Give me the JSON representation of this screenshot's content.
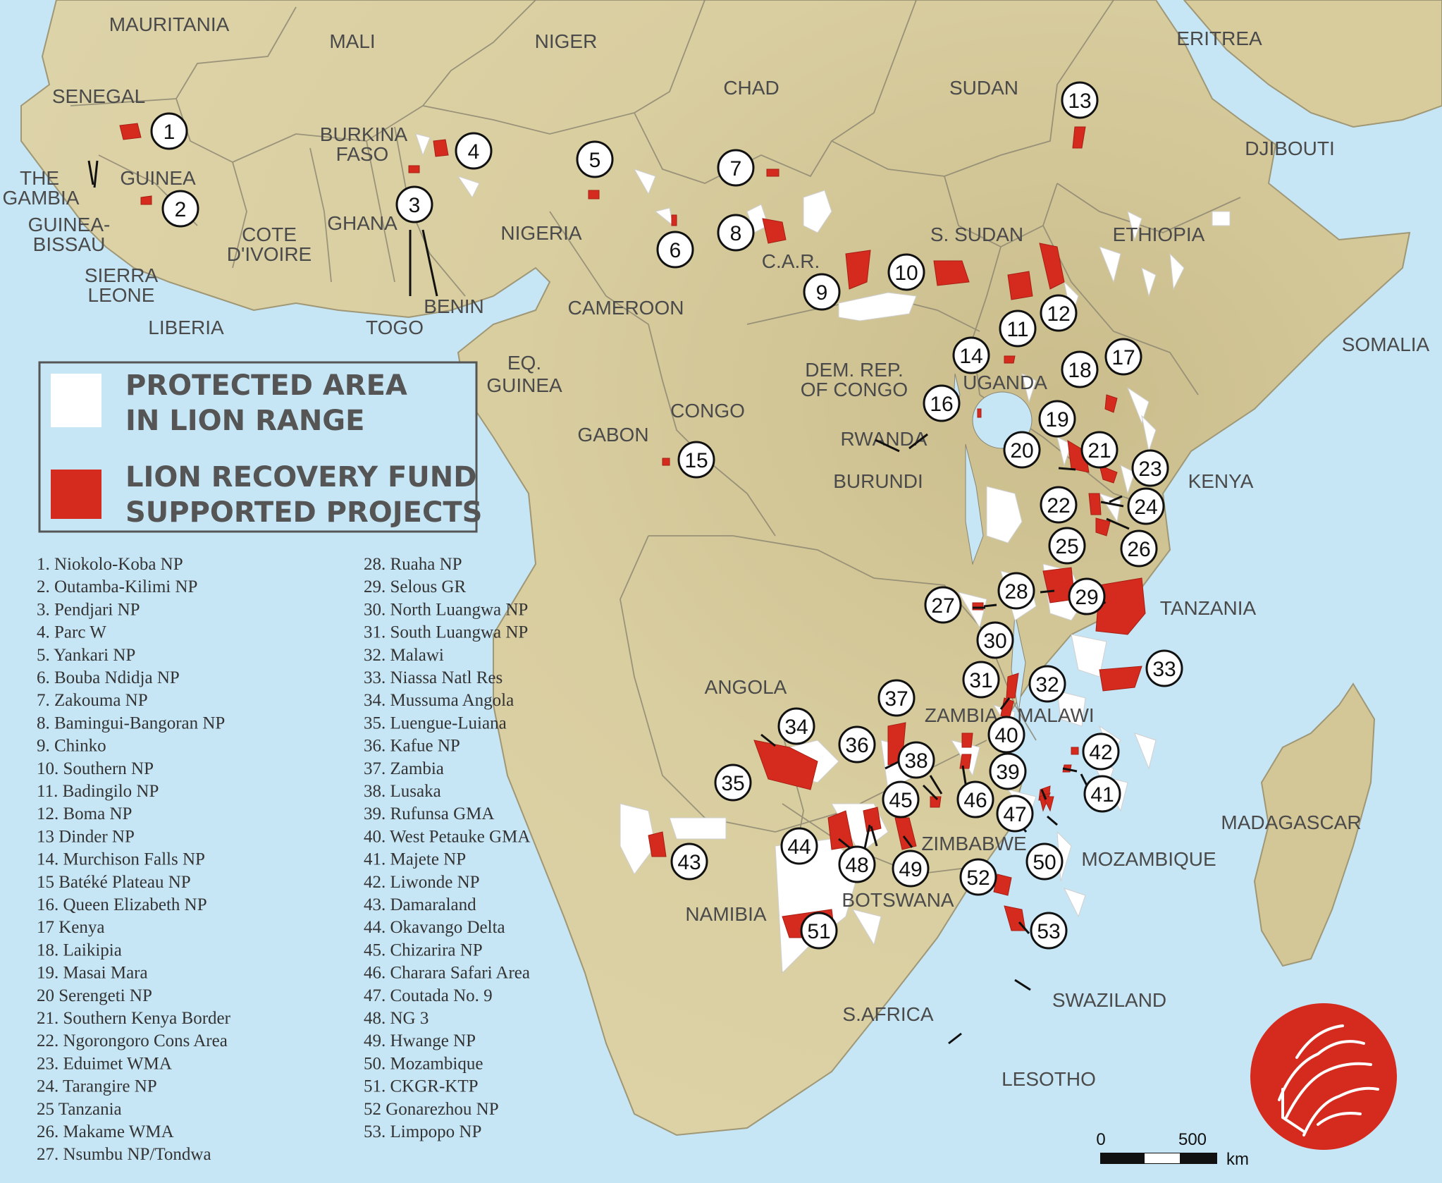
{
  "legend": {
    "protected_line1": "PROTECTED AREA",
    "protected_line2": "IN LION RANGE",
    "fund_line1": "LION RECOVERY FUND",
    "fund_line2": "SUPPORTED PROJECTS"
  },
  "colors": {
    "ocean": "#c7e6f5",
    "land": "#d8cc9c",
    "protected": "#ffffff",
    "project": "#d52b1e"
  },
  "projects": [
    "1. Niokolo-Koba NP",
    "2. Outamba-Kilimi NP",
    "3. Pendjari NP",
    "4. Parc W",
    "5. Yankari NP",
    "6. Bouba Ndidja NP",
    "7. Zakouma NP",
    "8. Bamingui-Bangoran NP",
    "9. Chinko",
    "10. Southern NP",
    "11. Badingilo NP",
    "12. Boma NP",
    "13 Dinder NP",
    "14. Murchison Falls NP",
    "15 Batéké Plateau NP",
    "16. Queen Elizabeth NP",
    "17 Kenya",
    "18. Laikipia",
    "19. Masai Mara",
    "20 Serengeti NP",
    "21. Southern Kenya Border",
    "22. Ngorongoro Cons Area",
    "23. Eduimet WMA",
    "24. Tarangire NP",
    "25 Tanzania",
    "26. Makame WMA",
    "27. Nsumbu NP/Tondwa",
    "28. Ruaha NP",
    "29. Selous GR",
    "30. North Luangwa NP",
    "31. South Luangwa NP",
    "32. Malawi",
    "33. Niassa Natl Res",
    "34. Mussuma Angola",
    "35. Luengue-Luiana",
    "36. Kafue NP",
    "37. Zambia",
    "38. Lusaka",
    "39. Rufunsa GMA",
    "40. West Petauke GMA",
    "41. Majete NP",
    "42. Liwonde NP",
    "43. Damaraland",
    "44. Okavango Delta",
    "45. Chizarira NP",
    "46. Charara Safari Area",
    "47. Coutada No. 9",
    "48. NG 3",
    "49. Hwange NP",
    "50. Mozambique",
    "51. CKGR-KTP",
    "52 Gonarezhou NP",
    "53. Limpopo NP"
  ],
  "countries": [
    {
      "name": "MAURITANIA"
    },
    {
      "name": "MALI"
    },
    {
      "name": "NIGER"
    },
    {
      "name": "CHAD"
    },
    {
      "name": "SUDAN"
    },
    {
      "name": "ERITREA"
    },
    {
      "name": "DJIBOUTI"
    },
    {
      "name": "SENEGAL"
    },
    {
      "name": "THE"
    },
    {
      "name": "GAMBIA"
    },
    {
      "name": "GUINEA"
    },
    {
      "name": "GUINEA-"
    },
    {
      "name": "BISSAU"
    },
    {
      "name": "SIERRA"
    },
    {
      "name": "LEONE"
    },
    {
      "name": "LIBERIA"
    },
    {
      "name": "BURKINA"
    },
    {
      "name": "FASO"
    },
    {
      "name": "GHANA"
    },
    {
      "name": "COTE"
    },
    {
      "name": "D'IVOIRE"
    },
    {
      "name": "TOGO"
    },
    {
      "name": "BENIN"
    },
    {
      "name": "NIGERIA"
    },
    {
      "name": "CAMEROON"
    },
    {
      "name": "C.A.R."
    },
    {
      "name": "S. SUDAN"
    },
    {
      "name": "ETHIOPIA"
    },
    {
      "name": "SOMALIA"
    },
    {
      "name": "EQ."
    },
    {
      "name": "GUINEA"
    },
    {
      "name": "GABON"
    },
    {
      "name": "CONGO"
    },
    {
      "name": "DEM. REP."
    },
    {
      "name": "OF CONGO"
    },
    {
      "name": "UGANDA"
    },
    {
      "name": "RWANDA"
    },
    {
      "name": "BURUNDI"
    },
    {
      "name": "KENYA"
    },
    {
      "name": "TANZANIA"
    },
    {
      "name": "ANGOLA"
    },
    {
      "name": "ZAMBIA"
    },
    {
      "name": "MALAWI"
    },
    {
      "name": "MOZAMBIQUE"
    },
    {
      "name": "MADAGASCAR"
    },
    {
      "name": "ZIMBABWE"
    },
    {
      "name": "NAMIBIA"
    },
    {
      "name": "BOTSWANA"
    },
    {
      "name": "S.AFRICA"
    },
    {
      "name": "SWAZILAND"
    },
    {
      "name": "LESOTHO"
    }
  ],
  "markers": [
    "1",
    "2",
    "3",
    "4",
    "5",
    "6",
    "7",
    "8",
    "9",
    "10",
    "11",
    "12",
    "13",
    "14",
    "15",
    "16",
    "17",
    "18",
    "19",
    "20",
    "21",
    "22",
    "23",
    "24",
    "25",
    "26",
    "27",
    "28",
    "29",
    "30",
    "31",
    "32",
    "33",
    "34",
    "35",
    "36",
    "37",
    "38",
    "39",
    "40",
    "41",
    "42",
    "43",
    "44",
    "45",
    "46",
    "47",
    "48",
    "49",
    "50",
    "51",
    "52",
    "53"
  ],
  "scale": {
    "zero": "0",
    "max": "500",
    "unit": "km"
  },
  "logo": {
    "icon": "lion-head-icon"
  }
}
